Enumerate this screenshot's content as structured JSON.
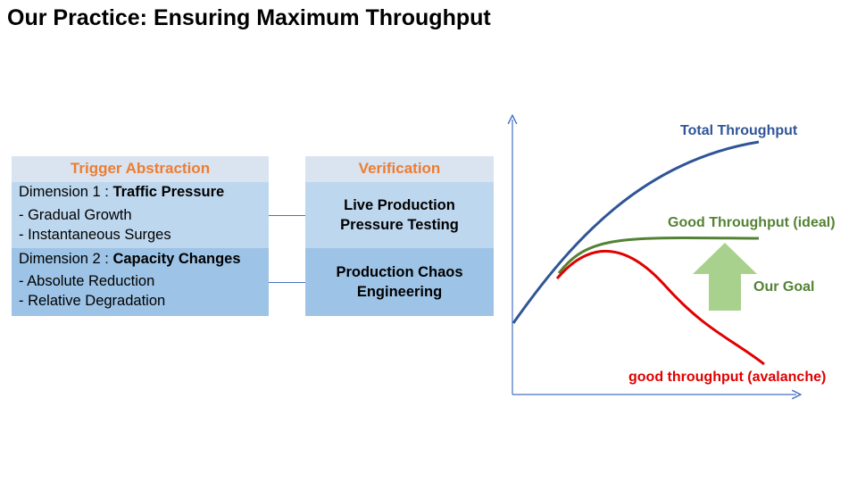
{
  "title": "Our Practice: Ensuring Maximum Throughput",
  "left_table": {
    "header": "Trigger Abstraction",
    "dim1": {
      "prefix": "Dimension 1 : ",
      "name": "Traffic Pressure",
      "items": [
        "- Gradual Growth",
        "- Instantaneous Surges"
      ]
    },
    "dim2": {
      "prefix": "Dimension 2 : ",
      "name": "Capacity Changes",
      "items": [
        "- Absolute Reduction",
        "- Relative Degradation"
      ]
    }
  },
  "right_table": {
    "header": "Verification",
    "row1": [
      "Live Production",
      "Pressure Testing"
    ],
    "row2": [
      "Production Chaos",
      "Engineering"
    ]
  },
  "chart": {
    "labels": {
      "total": "Total Throughput",
      "ideal": "Good Throughput (ideal)",
      "goal": "Our Goal",
      "avalanche": "good throughput (avalanche)"
    },
    "colors": {
      "total": "#2f5597",
      "ideal": "#548235",
      "goal_arrow": "#a9d18e",
      "avalanche": "#e00000",
      "orange": "#ed7d31",
      "axis": "#4472c4"
    }
  }
}
